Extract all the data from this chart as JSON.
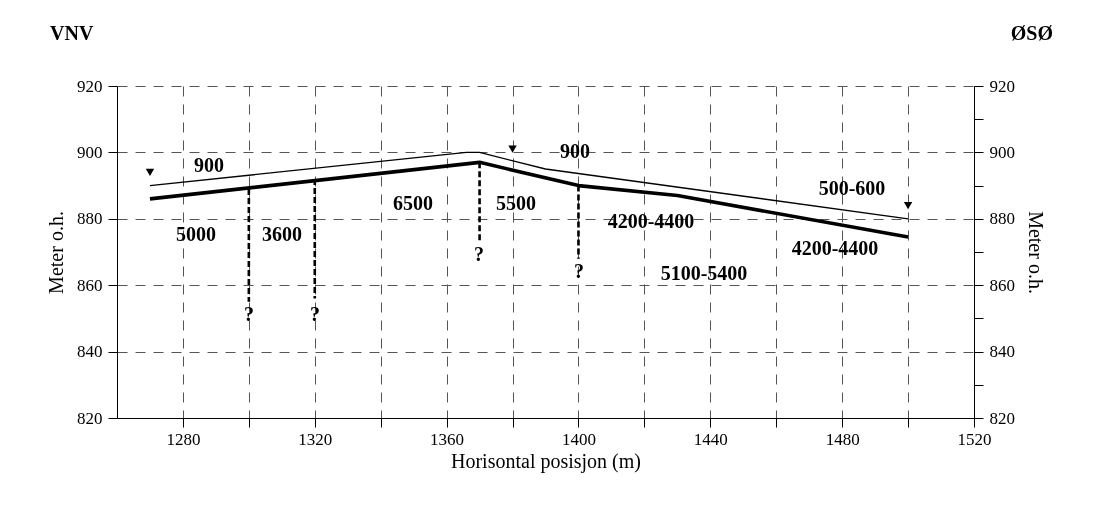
{
  "chart_data": {
    "type": "line",
    "xlabel": "Horisontal posisjon (m)",
    "ylabel": "Meter o.h.",
    "y2label": "Meter o.h.",
    "xlim": [
      1260,
      1520
    ],
    "ylim": [
      820,
      920
    ],
    "y2lim": [
      820,
      920
    ],
    "xticks": [
      1280,
      {
        "value": 1300,
        "label": null
      },
      1320,
      {
        "value": 1340,
        "label": null
      },
      1360,
      {
        "value": 1380,
        "label": null
      },
      1400,
      {
        "value": 1420,
        "label": null
      },
      1440,
      {
        "value": 1460,
        "label": null
      },
      1480,
      {
        "value": 1500,
        "label": null
      },
      1520
    ],
    "yticks": [
      820,
      {
        "value": 830,
        "label": null
      },
      840,
      {
        "value": 850,
        "label": null
      },
      860,
      {
        "value": 870,
        "label": null
      },
      880,
      {
        "value": 890,
        "label": null
      },
      900,
      {
        "value": 910,
        "label": null
      },
      920
    ],
    "y2ticks": [
      820,
      {
        "value": 830,
        "label": null
      },
      840,
      {
        "value": 850,
        "label": null
      },
      860,
      {
        "value": 870,
        "label": null
      },
      880,
      {
        "value": 890,
        "label": null
      },
      900,
      {
        "value": 910,
        "label": null
      },
      920
    ],
    "grid": true,
    "series": [
      {
        "color": "#000000",
        "x": [
          1270,
          1366,
          1370,
          1390,
          1500
        ],
        "values": [
          890,
          900,
          900,
          895,
          880
        ]
      },
      {
        "color": "#000000",
        "x": [
          1270,
          1370,
          1400,
          1430,
          1500
        ],
        "values": [
          886,
          897,
          890,
          887,
          874.5
        ]
      },
      {
        "color": "#000000",
        "line_style": "dashed",
        "x": [
          1300,
          1300
        ],
        "values": [
          889,
          855
        ]
      },
      {
        "color": "#000000",
        "line_style": "dashed",
        "x": [
          1320,
          1320
        ],
        "values": [
          892,
          856
        ]
      },
      {
        "color": "#000000",
        "line_style": "dashed",
        "x": [
          1370,
          1370
        ],
        "values": [
          897,
          873
        ]
      },
      {
        "color": "#000000",
        "line_style": "dashed",
        "x": [
          1400,
          1400
        ],
        "values": [
          890,
          868
        ]
      },
      {
        "type": "scatter",
        "marker": "triangle",
        "color": "#000000",
        "x": [
          1270,
          1380,
          1500
        ],
        "values": [
          894,
          901,
          884
        ]
      }
    ],
    "annotations": [
      "VNV",
      "ØSØ",
      "900",
      "5000",
      "3600",
      "?",
      "?",
      "6500",
      "?",
      "5500",
      "900",
      "4200-4400",
      "?",
      "5100-5400",
      "500-600",
      "4200-4400"
    ]
  }
}
